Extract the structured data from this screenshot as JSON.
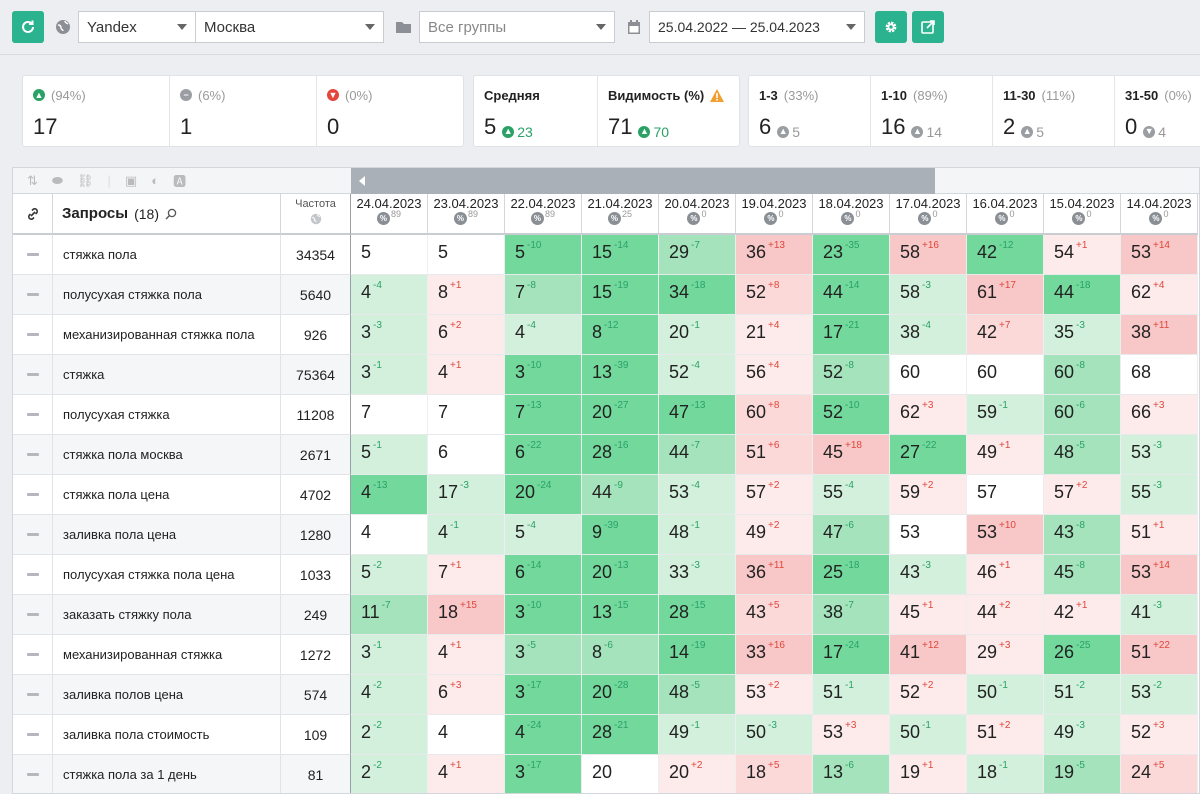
{
  "toolbar": {
    "engine": "Yandex",
    "region": "Москва",
    "group_placeholder": "Все группы",
    "date_range": "25.04.2022 — 25.04.2023"
  },
  "stats": {
    "up": {
      "pct": "(94%)",
      "value": "17"
    },
    "same": {
      "pct": "(6%)",
      "value": "1"
    },
    "down": {
      "pct": "(0%)",
      "value": "0"
    },
    "average": {
      "label": "Средняя",
      "value": "5",
      "delta": "23"
    },
    "visibility": {
      "label": "Видимость (%)",
      "value": "71",
      "delta": "70"
    },
    "top3": {
      "label": "1-3",
      "pct": "(33%)",
      "value": "6",
      "delta": "5"
    },
    "top10": {
      "label": "1-10",
      "pct": "(89%)",
      "value": "16",
      "delta": "14"
    },
    "top30": {
      "label": "11-30",
      "pct": "(11%)",
      "value": "2",
      "delta": "5"
    },
    "top50": {
      "label": "31-50",
      "pct": "(0%)",
      "value": "0",
      "delta": "4"
    }
  },
  "table": {
    "queries_label": "Запросы",
    "queries_count": "(18)",
    "freq_label": "Частота",
    "dates": [
      {
        "date": "24.04.2023",
        "pct": "89"
      },
      {
        "date": "23.04.2023",
        "pct": "89"
      },
      {
        "date": "22.04.2023",
        "pct": "89"
      },
      {
        "date": "21.04.2023",
        "pct": "25"
      },
      {
        "date": "20.04.2023",
        "pct": "0"
      },
      {
        "date": "19.04.2023",
        "pct": "0"
      },
      {
        "date": "18.04.2023",
        "pct": "0"
      },
      {
        "date": "17.04.2023",
        "pct": "0"
      },
      {
        "date": "16.04.2023",
        "pct": "0"
      },
      {
        "date": "15.04.2023",
        "pct": "0"
      },
      {
        "date": "14.04.2023",
        "pct": "0"
      }
    ],
    "rows": [
      {
        "query": "стяжка пола",
        "freq": "34354",
        "cells": [
          [
            "5",
            ""
          ],
          [
            "5",
            ""
          ],
          [
            "5",
            "-10"
          ],
          [
            "15",
            "-14"
          ],
          [
            "29",
            "-7"
          ],
          [
            "36",
            "+13"
          ],
          [
            "23",
            "-35"
          ],
          [
            "58",
            "+16"
          ],
          [
            "42",
            "-12"
          ],
          [
            "54",
            "+1"
          ],
          [
            "53",
            "+14"
          ]
        ]
      },
      {
        "query": "полусухая стяжка пола",
        "freq": "5640",
        "cells": [
          [
            "4",
            "-4"
          ],
          [
            "8",
            "+1"
          ],
          [
            "7",
            "-8"
          ],
          [
            "15",
            "-19"
          ],
          [
            "34",
            "-18"
          ],
          [
            "52",
            "+8"
          ],
          [
            "44",
            "-14"
          ],
          [
            "58",
            "-3"
          ],
          [
            "61",
            "+17"
          ],
          [
            "44",
            "-18"
          ],
          [
            "62",
            "+4"
          ]
        ]
      },
      {
        "query": "механизированная стяжка пола",
        "freq": "926",
        "cells": [
          [
            "3",
            "-3"
          ],
          [
            "6",
            "+2"
          ],
          [
            "4",
            "-4"
          ],
          [
            "8",
            "-12"
          ],
          [
            "20",
            "-1"
          ],
          [
            "21",
            "+4"
          ],
          [
            "17",
            "-21"
          ],
          [
            "38",
            "-4"
          ],
          [
            "42",
            "+7"
          ],
          [
            "35",
            "-3"
          ],
          [
            "38",
            "+11"
          ]
        ]
      },
      {
        "query": "стяжка",
        "freq": "75364",
        "cells": [
          [
            "3",
            "-1"
          ],
          [
            "4",
            "+1"
          ],
          [
            "3",
            "-10"
          ],
          [
            "13",
            "-39"
          ],
          [
            "52",
            "-4"
          ],
          [
            "56",
            "+4"
          ],
          [
            "52",
            "-8"
          ],
          [
            "60",
            ""
          ],
          [
            "60",
            ""
          ],
          [
            "60",
            "-8"
          ],
          [
            "68",
            ""
          ]
        ]
      },
      {
        "query": "полусухая стяжка",
        "freq": "11208",
        "cells": [
          [
            "7",
            ""
          ],
          [
            "7",
            ""
          ],
          [
            "7",
            "-13"
          ],
          [
            "20",
            "-27"
          ],
          [
            "47",
            "-13"
          ],
          [
            "60",
            "+8"
          ],
          [
            "52",
            "-10"
          ],
          [
            "62",
            "+3"
          ],
          [
            "59",
            "-1"
          ],
          [
            "60",
            "-6"
          ],
          [
            "66",
            "+3"
          ]
        ]
      },
      {
        "query": "стяжка пола москва",
        "freq": "2671",
        "cells": [
          [
            "5",
            "-1"
          ],
          [
            "6",
            ""
          ],
          [
            "6",
            "-22"
          ],
          [
            "28",
            "-16"
          ],
          [
            "44",
            "-7"
          ],
          [
            "51",
            "+6"
          ],
          [
            "45",
            "+18"
          ],
          [
            "27",
            "-22"
          ],
          [
            "49",
            "+1"
          ],
          [
            "48",
            "-5"
          ],
          [
            "53",
            "-3"
          ]
        ]
      },
      {
        "query": "стяжка пола цена",
        "freq": "4702",
        "cells": [
          [
            "4",
            "-13"
          ],
          [
            "17",
            "-3"
          ],
          [
            "20",
            "-24"
          ],
          [
            "44",
            "-9"
          ],
          [
            "53",
            "-4"
          ],
          [
            "57",
            "+2"
          ],
          [
            "55",
            "-4"
          ],
          [
            "59",
            "+2"
          ],
          [
            "57",
            ""
          ],
          [
            "57",
            "+2"
          ],
          [
            "55",
            "-3"
          ]
        ]
      },
      {
        "query": "заливка пола цена",
        "freq": "1280",
        "cells": [
          [
            "4",
            ""
          ],
          [
            "4",
            "-1"
          ],
          [
            "5",
            "-4"
          ],
          [
            "9",
            "-39"
          ],
          [
            "48",
            "-1"
          ],
          [
            "49",
            "+2"
          ],
          [
            "47",
            "-6"
          ],
          [
            "53",
            ""
          ],
          [
            "53",
            "+10"
          ],
          [
            "43",
            "-8"
          ],
          [
            "51",
            "+1"
          ]
        ]
      },
      {
        "query": "полусухая стяжка пола цена",
        "freq": "1033",
        "cells": [
          [
            "5",
            "-2"
          ],
          [
            "7",
            "+1"
          ],
          [
            "6",
            "-14"
          ],
          [
            "20",
            "-13"
          ],
          [
            "33",
            "-3"
          ],
          [
            "36",
            "+11"
          ],
          [
            "25",
            "-18"
          ],
          [
            "43",
            "-3"
          ],
          [
            "46",
            "+1"
          ],
          [
            "45",
            "-8"
          ],
          [
            "53",
            "+14"
          ]
        ]
      },
      {
        "query": "заказать стяжку пола",
        "freq": "249",
        "cells": [
          [
            "11",
            "-7"
          ],
          [
            "18",
            "+15"
          ],
          [
            "3",
            "-10"
          ],
          [
            "13",
            "-15"
          ],
          [
            "28",
            "-15"
          ],
          [
            "43",
            "+5"
          ],
          [
            "38",
            "-7"
          ],
          [
            "45",
            "+1"
          ],
          [
            "44",
            "+2"
          ],
          [
            "42",
            "+1"
          ],
          [
            "41",
            "-3"
          ]
        ]
      },
      {
        "query": "механизированная стяжка",
        "freq": "1272",
        "cells": [
          [
            "3",
            "-1"
          ],
          [
            "4",
            "+1"
          ],
          [
            "3",
            "-5"
          ],
          [
            "8",
            "-6"
          ],
          [
            "14",
            "-19"
          ],
          [
            "33",
            "+16"
          ],
          [
            "17",
            "-24"
          ],
          [
            "41",
            "+12"
          ],
          [
            "29",
            "+3"
          ],
          [
            "26",
            "-25"
          ],
          [
            "51",
            "+22"
          ]
        ]
      },
      {
        "query": "заливка полов цена",
        "freq": "574",
        "cells": [
          [
            "4",
            "-2"
          ],
          [
            "6",
            "+3"
          ],
          [
            "3",
            "-17"
          ],
          [
            "20",
            "-28"
          ],
          [
            "48",
            "-5"
          ],
          [
            "53",
            "+2"
          ],
          [
            "51",
            "-1"
          ],
          [
            "52",
            "+2"
          ],
          [
            "50",
            "-1"
          ],
          [
            "51",
            "-2"
          ],
          [
            "53",
            "-2"
          ]
        ]
      },
      {
        "query": "заливка пола стоимость",
        "freq": "109",
        "cells": [
          [
            "2",
            "-2"
          ],
          [
            "4",
            ""
          ],
          [
            "4",
            "-24"
          ],
          [
            "28",
            "-21"
          ],
          [
            "49",
            "-1"
          ],
          [
            "50",
            "-3"
          ],
          [
            "53",
            "+3"
          ],
          [
            "50",
            "-1"
          ],
          [
            "51",
            "+2"
          ],
          [
            "49",
            "-3"
          ],
          [
            "52",
            "+3"
          ]
        ]
      },
      {
        "query": "стяжка пола за 1 день",
        "freq": "81",
        "cells": [
          [
            "2",
            "-2"
          ],
          [
            "4",
            "+1"
          ],
          [
            "3",
            "-17"
          ],
          [
            "20",
            ""
          ],
          [
            "20",
            "+2"
          ],
          [
            "18",
            "+5"
          ],
          [
            "13",
            "-6"
          ],
          [
            "19",
            "+1"
          ],
          [
            "18",
            "-1"
          ],
          [
            "19",
            "-5"
          ],
          [
            "24",
            "+5"
          ]
        ]
      }
    ]
  },
  "colors": {
    "accent": "#2bb28e",
    "up": "#2aa266",
    "down": "#e0473c"
  }
}
